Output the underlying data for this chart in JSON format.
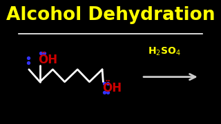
{
  "title": "Alcohol Dehydration",
  "title_color": "#FFFF00",
  "bg_color": "#000000",
  "line_color": "#FFFFFF",
  "oh_color": "#CC0000",
  "dot_color": "#3333FF",
  "arrow_color": "#CCCCCC"
}
